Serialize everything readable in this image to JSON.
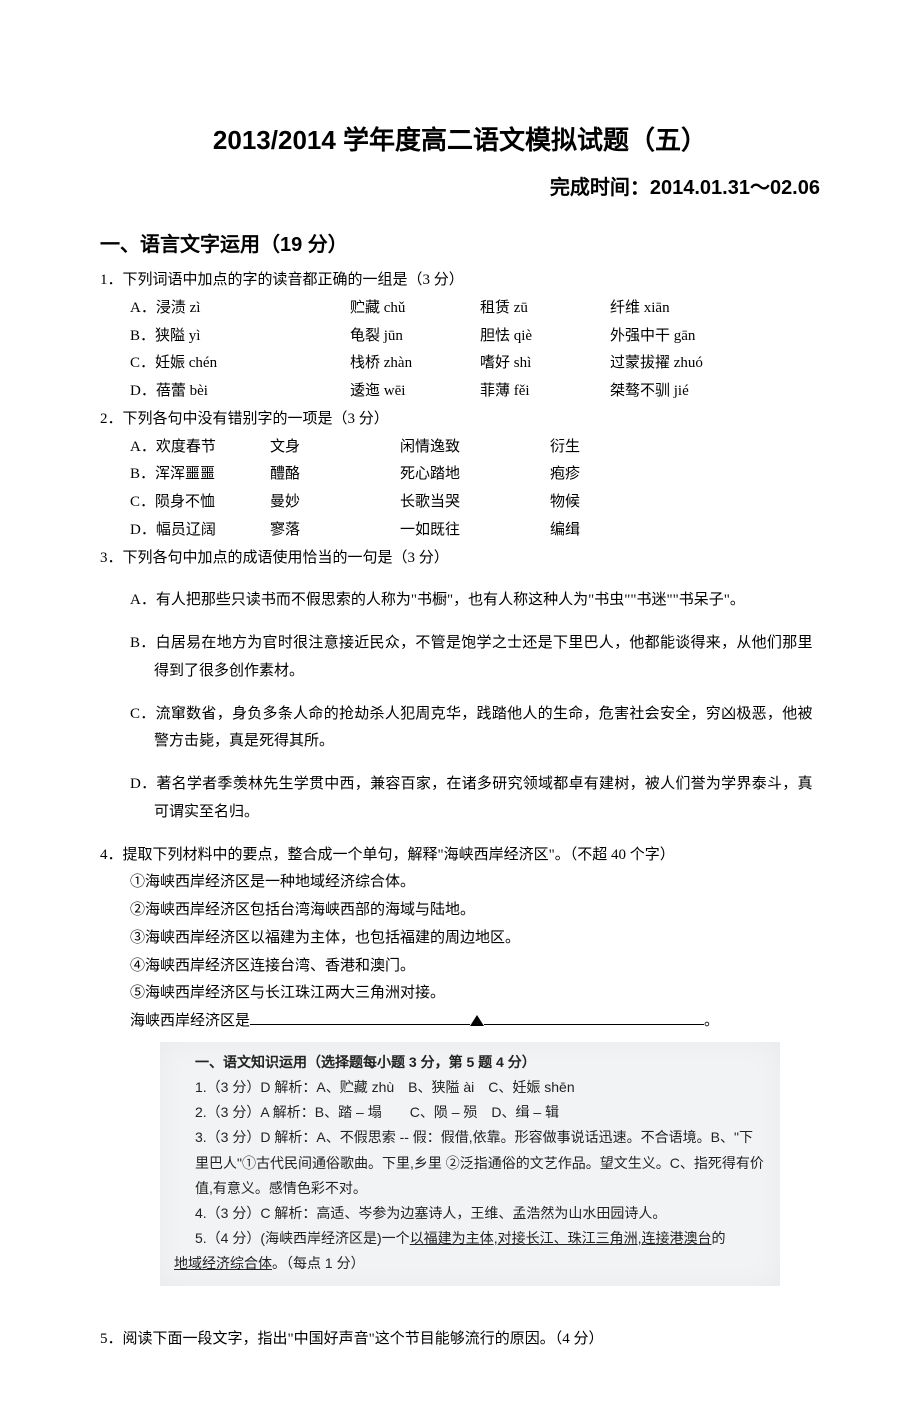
{
  "title": "2013/2014 学年度高二语文模拟试题（五）",
  "subtitle": "完成时间：2014.01.31～02.06",
  "section1_heading": "一、语言文字运用（19 分）",
  "q1": {
    "stem": "1．下列词语中加点的字的读音都正确的一组是（3 分）",
    "opts": [
      {
        "label": "A．",
        "a": "浸渍 zì",
        "b": "贮藏 chǔ",
        "c": "租赁 zū",
        "d": "纤维 xiān"
      },
      {
        "label": "B．",
        "a": "狭隘 yì",
        "b": "龟裂 jūn",
        "c": "胆怯 qiè",
        "d": "外强中干 gān"
      },
      {
        "label": "C．",
        "a": "妊娠 chén",
        "b": "栈桥 zhàn",
        "c": "嗜好 shì",
        "d": "过蒙拔擢 zhuó"
      },
      {
        "label": "D．",
        "a": "蓓蕾 bèi",
        "b": "逶迤 wēi",
        "c": "菲薄 fěi",
        "d": "桀骜不驯 jié"
      }
    ]
  },
  "q2": {
    "stem": "2．下列各句中没有错别字的一项是（3 分）",
    "opts": [
      {
        "label": "A．",
        "a": "欢度春节",
        "b": "文身",
        "c": "闲情逸致",
        "d": "衍生"
      },
      {
        "label": "B．",
        "a": "浑浑噩噩",
        "b": "醴酪",
        "c": "死心踏地",
        "d": "疱疹"
      },
      {
        "label": "C．",
        "a": "陨身不恤",
        "b": "曼妙",
        "c": "长歌当哭",
        "d": "物候"
      },
      {
        "label": "D．",
        "a": "幅员辽阔",
        "b": "寥落",
        "c": "一如既往",
        "d": "编缉"
      }
    ]
  },
  "q3": {
    "stem": "3．下列各句中加点的成语使用恰当的一句是（3 分）",
    "opts": [
      "A．有人把那些只读书而不假思索的人称为\"书橱\"，也有人称这种人为\"书虫\"\"书迷\"\"书呆子\"。",
      "B．白居易在地方为官时很注意接近民众，不管是饱学之士还是下里巴人，他都能谈得来，从他们那里得到了很多创作素材。",
      "C．流窜数省，身负多条人命的抢劫杀人犯周克华，践踏他人的生命，危害社会安全，穷凶极恶，他被警方击毙，真是死得其所。",
      "D．著名学者季羡林先生学贯中西，兼容百家，在诸多研究领域都卓有建树，被人们誉为学界泰斗，真可谓实至名归。"
    ]
  },
  "q4": {
    "stem": "4．提取下列材料中的要点，整合成一个单句，解释\"海峡西岸经济区\"。（不超 40 个字）",
    "lines": [
      "①海峡西岸经济区是一种地域经济综合体。",
      "②海峡西岸经济区包括台湾海峡西部的海域与陆地。",
      "③海峡西岸经济区以福建为主体，也包括福建的周边地区。",
      "④海峡西岸经济区连接台湾、香港和澳门。",
      "⑤海峡西岸经济区与长江珠江两大三角洲对接。"
    ],
    "tail_prefix": "海峡西岸经济区是",
    "tail_suffix": "。"
  },
  "answer_box": {
    "heading": "一、语文知识运用（选择题每小题 3 分，第 5 题 4 分）",
    "lines": [
      "1.（3 分）D 解析：A、贮藏 zhù　B、狭隘 ài　C、妊娠 shēn",
      "2.（3 分）A 解析：B、踏 – 塌　　C、陨 – 殒　D、缉 – 辑",
      "3.（3 分）D 解析：A、不假思索 -- 假：假借,依靠。形容做事说话迅速。不合语境。B、\"下里巴人\"①古代民间通俗歌曲。下里,乡里 ②泛指通俗的文艺作品。望文生义。C、指死得有价值,有意义。感情色彩不对。",
      "4.（3 分）C 解析：高适、岑参为边塞诗人，王维、孟浩然为山水田园诗人。",
      "5.（4 分）(海峡西岸经济区是)一个",
      "（每点 1 分）"
    ],
    "underline_parts": [
      "以福建为主体",
      "对接长江、珠江三角洲",
      "连接港澳台",
      "地域经济综合体"
    ],
    "joiner": "的"
  },
  "q5": {
    "stem": "5．阅读下面一段文字，指出\"中国好声音\"这个节目能够流行的原因。（4 分）"
  }
}
